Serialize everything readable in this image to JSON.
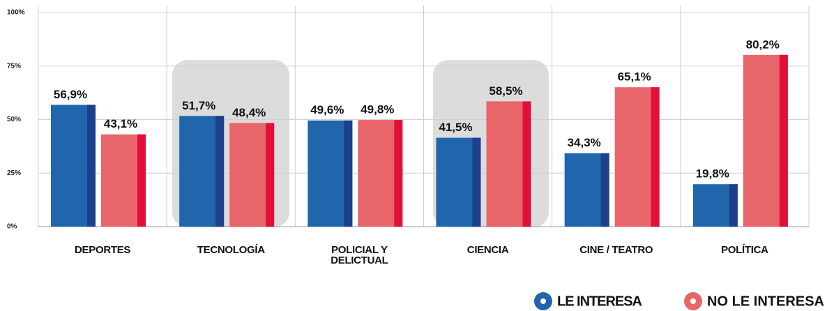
{
  "chart_data": {
    "type": "bar",
    "categories": [
      "DEPORTES",
      "TECNOLOGÍA",
      "POLICIAL Y DELICTUAL",
      "CIENCIA",
      "CINE / TEATRO",
      "POLÍTICA"
    ],
    "series": [
      {
        "name": "LE INTERESA",
        "color": "#1f66ad",
        "values": [
          56.9,
          51.7,
          49.6,
          41.5,
          34.3,
          19.8
        ],
        "value_labels": [
          "56,9%",
          "51,7%",
          "49,6%",
          "41,5%",
          "34,3%",
          "19,8%"
        ]
      },
      {
        "name": "NO LE INTERESA",
        "color": "#e8666a",
        "values": [
          43.1,
          48.4,
          49.8,
          58.5,
          65.1,
          80.2
        ],
        "value_labels": [
          "43,1%",
          "48,4%",
          "49,8%",
          "58,5%",
          "65,1%",
          "80,2%"
        ]
      }
    ],
    "ylim": [
      0,
      100
    ],
    "yticks": [
      {
        "value": 0,
        "label": "0%"
      },
      {
        "value": 25,
        "label": "25%"
      },
      {
        "value": 50,
        "label": "50%"
      },
      {
        "value": 75,
        "label": "75%"
      },
      {
        "value": 100,
        "label": "100%"
      }
    ],
    "grid": true
  }
}
